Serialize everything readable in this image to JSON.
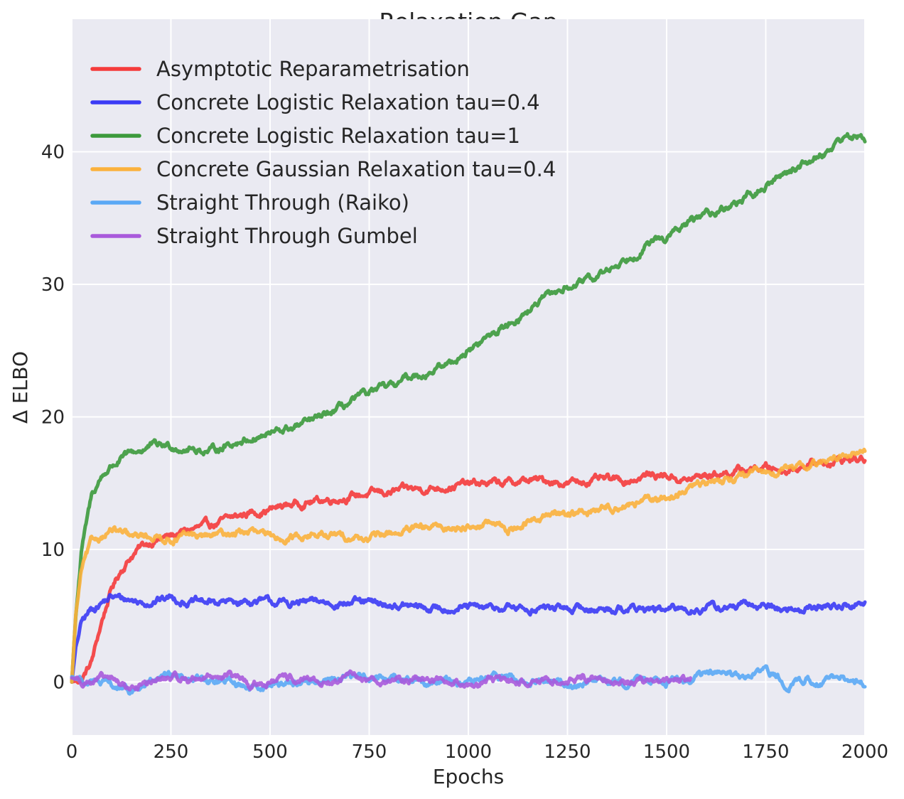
{
  "chart_data": {
    "type": "line",
    "title": "Relaxation Gap",
    "xlabel": "Epochs",
    "ylabel": "Δ ELBO",
    "xlim": [
      0,
      2000
    ],
    "ylim": [
      -4,
      50
    ],
    "xticks": [
      0,
      250,
      500,
      750,
      1000,
      1250,
      1500,
      1750,
      2000
    ],
    "yticks": [
      0,
      10,
      20,
      30,
      40
    ],
    "grid": true,
    "legend": "top-left",
    "background": "#EAEAF2",
    "series": [
      {
        "name": "Asymptotic Reparametrisation",
        "color": "#F53B3B",
        "x": [
          0,
          25,
          50,
          75,
          100,
          125,
          150,
          175,
          200,
          250,
          300,
          350,
          400,
          450,
          500,
          550,
          600,
          650,
          700,
          750,
          800,
          850,
          900,
          950,
          1000,
          1050,
          1100,
          1150,
          1200,
          1250,
          1300,
          1350,
          1400,
          1450,
          1500,
          1550,
          1600,
          1650,
          1700,
          1750,
          1800,
          1850,
          1900,
          1950,
          2000
        ],
        "y": [
          0.0,
          0.2,
          1.5,
          4.5,
          7.0,
          8.5,
          9.5,
          10.2,
          10.6,
          11.0,
          11.5,
          11.8,
          12.3,
          12.8,
          13.0,
          13.4,
          13.6,
          13.8,
          14.0,
          14.2,
          14.3,
          14.5,
          14.6,
          14.8,
          14.9,
          15.0,
          15.0,
          15.2,
          15.2,
          15.0,
          15.2,
          15.2,
          15.2,
          15.6,
          15.6,
          15.2,
          15.6,
          15.8,
          16.0,
          16.2,
          16.0,
          16.4,
          16.6,
          16.8,
          16.8
        ]
      },
      {
        "name": "Concrete Logistic Relaxation tau=0.4",
        "color": "#3B3BF5",
        "x": [
          0,
          10,
          25,
          50,
          75,
          100,
          125,
          150,
          175,
          200,
          250,
          300,
          350,
          400,
          450,
          500,
          550,
          600,
          650,
          700,
          750,
          800,
          850,
          900,
          950,
          1000,
          1050,
          1100,
          1150,
          1200,
          1250,
          1300,
          1350,
          1400,
          1450,
          1500,
          1550,
          1600,
          1650,
          1700,
          1750,
          1800,
          1850,
          1900,
          1950,
          2000
        ],
        "y": [
          0.0,
          2.5,
          4.5,
          5.5,
          6.0,
          6.4,
          6.3,
          6.2,
          6.0,
          6.1,
          6.4,
          6.0,
          6.0,
          6.0,
          6.1,
          6.0,
          5.9,
          6.0,
          6.0,
          6.0,
          5.9,
          5.8,
          5.7,
          5.5,
          5.6,
          5.6,
          5.5,
          5.6,
          5.5,
          5.6,
          5.5,
          5.5,
          5.5,
          5.6,
          5.5,
          5.4,
          5.5,
          5.6,
          5.6,
          5.7,
          5.8,
          5.4,
          5.6,
          5.7,
          5.8,
          5.9
        ]
      },
      {
        "name": "Concrete Logistic Relaxation tau=1",
        "color": "#3C9A3C",
        "x": [
          0,
          10,
          25,
          50,
          75,
          100,
          125,
          150,
          175,
          200,
          250,
          300,
          350,
          400,
          450,
          500,
          550,
          600,
          650,
          700,
          750,
          800,
          850,
          900,
          950,
          1000,
          1050,
          1100,
          1150,
          1200,
          1250,
          1300,
          1350,
          1400,
          1450,
          1500,
          1550,
          1600,
          1650,
          1700,
          1750,
          1800,
          1850,
          1900,
          1950,
          2000
        ],
        "y": [
          0.0,
          5.0,
          10.0,
          14.0,
          15.5,
          16.3,
          16.8,
          17.2,
          17.5,
          17.8,
          17.8,
          17.6,
          17.4,
          18.0,
          18.4,
          18.7,
          19.1,
          19.6,
          20.2,
          21.0,
          21.8,
          22.2,
          23.0,
          23.4,
          24.0,
          25.0,
          26.0,
          27.0,
          28.0,
          29.0,
          29.8,
          30.2,
          31.0,
          32.0,
          33.0,
          33.5,
          34.5,
          35.3,
          35.8,
          36.5,
          37.3,
          38.5,
          39.2,
          40.0,
          41.2,
          41.0
        ]
      },
      {
        "name": "Concrete Gaussian Relaxation tau=0.4",
        "color": "#FBB13C",
        "x": [
          0,
          10,
          25,
          50,
          75,
          100,
          125,
          150,
          175,
          200,
          250,
          300,
          350,
          400,
          450,
          500,
          550,
          600,
          650,
          700,
          750,
          800,
          850,
          900,
          950,
          1000,
          1050,
          1100,
          1150,
          1200,
          1250,
          1300,
          1350,
          1400,
          1450,
          1500,
          1550,
          1600,
          1650,
          1700,
          1750,
          1800,
          1850,
          1900,
          1950,
          2000
        ],
        "y": [
          0.0,
          5.0,
          8.5,
          10.5,
          11.0,
          11.5,
          11.2,
          10.8,
          11.0,
          11.0,
          10.8,
          11.0,
          11.0,
          11.2,
          11.4,
          10.8,
          11.0,
          11.1,
          11.0,
          11.0,
          10.8,
          11.2,
          11.4,
          11.6,
          11.6,
          11.8,
          12.0,
          11.5,
          12.0,
          12.6,
          12.8,
          12.8,
          13.2,
          13.4,
          13.6,
          13.8,
          14.5,
          15.0,
          15.4,
          15.6,
          15.8,
          16.0,
          16.3,
          16.6,
          17.2,
          17.4
        ]
      },
      {
        "name": "Straight Through (Raiko)",
        "color": "#5AA8F5",
        "x": [
          0,
          50,
          100,
          150,
          200,
          250,
          300,
          350,
          400,
          450,
          500,
          550,
          600,
          650,
          700,
          750,
          800,
          850,
          900,
          950,
          1000,
          1050,
          1100,
          1150,
          1200,
          1250,
          1300,
          1350,
          1400,
          1450,
          1500,
          1550,
          1600,
          1650,
          1700,
          1750,
          1800,
          1850,
          1900,
          1950,
          2000
        ],
        "y": [
          0.4,
          0.0,
          -0.3,
          -0.8,
          0.0,
          0.3,
          0.4,
          0.0,
          0.0,
          -0.3,
          -0.2,
          0.0,
          0.0,
          0.2,
          0.5,
          0.4,
          0.3,
          0.3,
          0.0,
          0.2,
          -0.4,
          0.4,
          0.4,
          -0.2,
          0.0,
          -0.2,
          0.0,
          0.2,
          0.0,
          0.3,
          0.2,
          0.2,
          0.6,
          0.6,
          0.3,
          0.8,
          0.0,
          0.1,
          0.2,
          0.0,
          0.0
        ]
      },
      {
        "name": "Straight Through Gumbel",
        "color": "#A95ADB",
        "x": [
          0,
          50,
          100,
          150,
          200,
          250,
          300,
          350,
          400,
          450,
          500,
          550,
          600,
          650,
          700,
          750,
          800,
          850,
          900,
          950,
          1000,
          1050,
          1100,
          1150,
          1200,
          1250,
          1300,
          1350,
          1400,
          1450,
          1500,
          1560
        ],
        "y": [
          0.3,
          0.1,
          0.2,
          -0.5,
          0.0,
          0.3,
          0.2,
          0.5,
          0.5,
          -0.3,
          0.0,
          0.2,
          0.0,
          0.0,
          0.3,
          0.2,
          0.1,
          0.2,
          0.3,
          0.2,
          -0.2,
          0.0,
          0.1,
          0.0,
          0.1,
          0.2,
          0.3,
          0.4,
          0.0,
          0.1,
          0.0,
          0.1
        ]
      }
    ]
  }
}
